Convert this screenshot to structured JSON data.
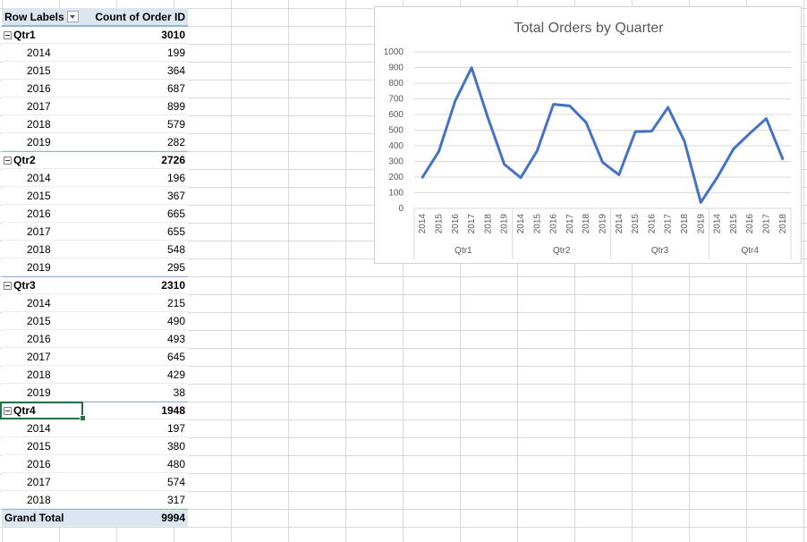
{
  "pivot": {
    "header": {
      "row_labels": "Row Labels",
      "value_label": "Count of Order ID"
    },
    "groups": [
      {
        "label": "Qtr1",
        "total": "3010",
        "items": [
          {
            "label": "2014",
            "value": "199"
          },
          {
            "label": "2015",
            "value": "364"
          },
          {
            "label": "2016",
            "value": "687"
          },
          {
            "label": "2017",
            "value": "899"
          },
          {
            "label": "2018",
            "value": "579"
          },
          {
            "label": "2019",
            "value": "282"
          }
        ]
      },
      {
        "label": "Qtr2",
        "total": "2726",
        "items": [
          {
            "label": "2014",
            "value": "196"
          },
          {
            "label": "2015",
            "value": "367"
          },
          {
            "label": "2016",
            "value": "665"
          },
          {
            "label": "2017",
            "value": "655"
          },
          {
            "label": "2018",
            "value": "548"
          },
          {
            "label": "2019",
            "value": "295"
          }
        ]
      },
      {
        "label": "Qtr3",
        "total": "2310",
        "items": [
          {
            "label": "2014",
            "value": "215"
          },
          {
            "label": "2015",
            "value": "490"
          },
          {
            "label": "2016",
            "value": "493"
          },
          {
            "label": "2017",
            "value": "645"
          },
          {
            "label": "2018",
            "value": "429"
          },
          {
            "label": "2019",
            "value": "38"
          }
        ]
      },
      {
        "label": "Qtr4",
        "total": "1948",
        "items": [
          {
            "label": "2014",
            "value": "197"
          },
          {
            "label": "2015",
            "value": "380"
          },
          {
            "label": "2016",
            "value": "480"
          },
          {
            "label": "2017",
            "value": "574"
          },
          {
            "label": "2018",
            "value": "317"
          }
        ]
      }
    ],
    "grand_total": {
      "label": "Grand Total",
      "value": "9994"
    }
  },
  "chart_data": {
    "type": "line",
    "title": "Total Orders by Quarter",
    "xlabel": "",
    "ylabel": "",
    "ylim": [
      0,
      1000
    ],
    "yticks": [
      0,
      100,
      200,
      300,
      400,
      500,
      600,
      700,
      800,
      900,
      1000
    ],
    "grid": true,
    "legend": "none",
    "line_color": "#4472c4",
    "groups": [
      {
        "label": "Qtr1",
        "categories": [
          "2014",
          "2015",
          "2016",
          "2017",
          "2018",
          "2019"
        ],
        "values": [
          199,
          364,
          687,
          899,
          579,
          282
        ]
      },
      {
        "label": "Qtr2",
        "categories": [
          "2014",
          "2015",
          "2016",
          "2017",
          "2018",
          "2019"
        ],
        "values": [
          196,
          367,
          665,
          655,
          548,
          295
        ]
      },
      {
        "label": "Qtr3",
        "categories": [
          "2014",
          "2015",
          "2016",
          "2017",
          "2018",
          "2019"
        ],
        "values": [
          215,
          490,
          493,
          645,
          429,
          38
        ]
      },
      {
        "label": "Qtr4",
        "categories": [
          "2014",
          "2015",
          "2016",
          "2017",
          "2018"
        ],
        "values": [
          197,
          380,
          480,
          574,
          317
        ]
      }
    ]
  }
}
